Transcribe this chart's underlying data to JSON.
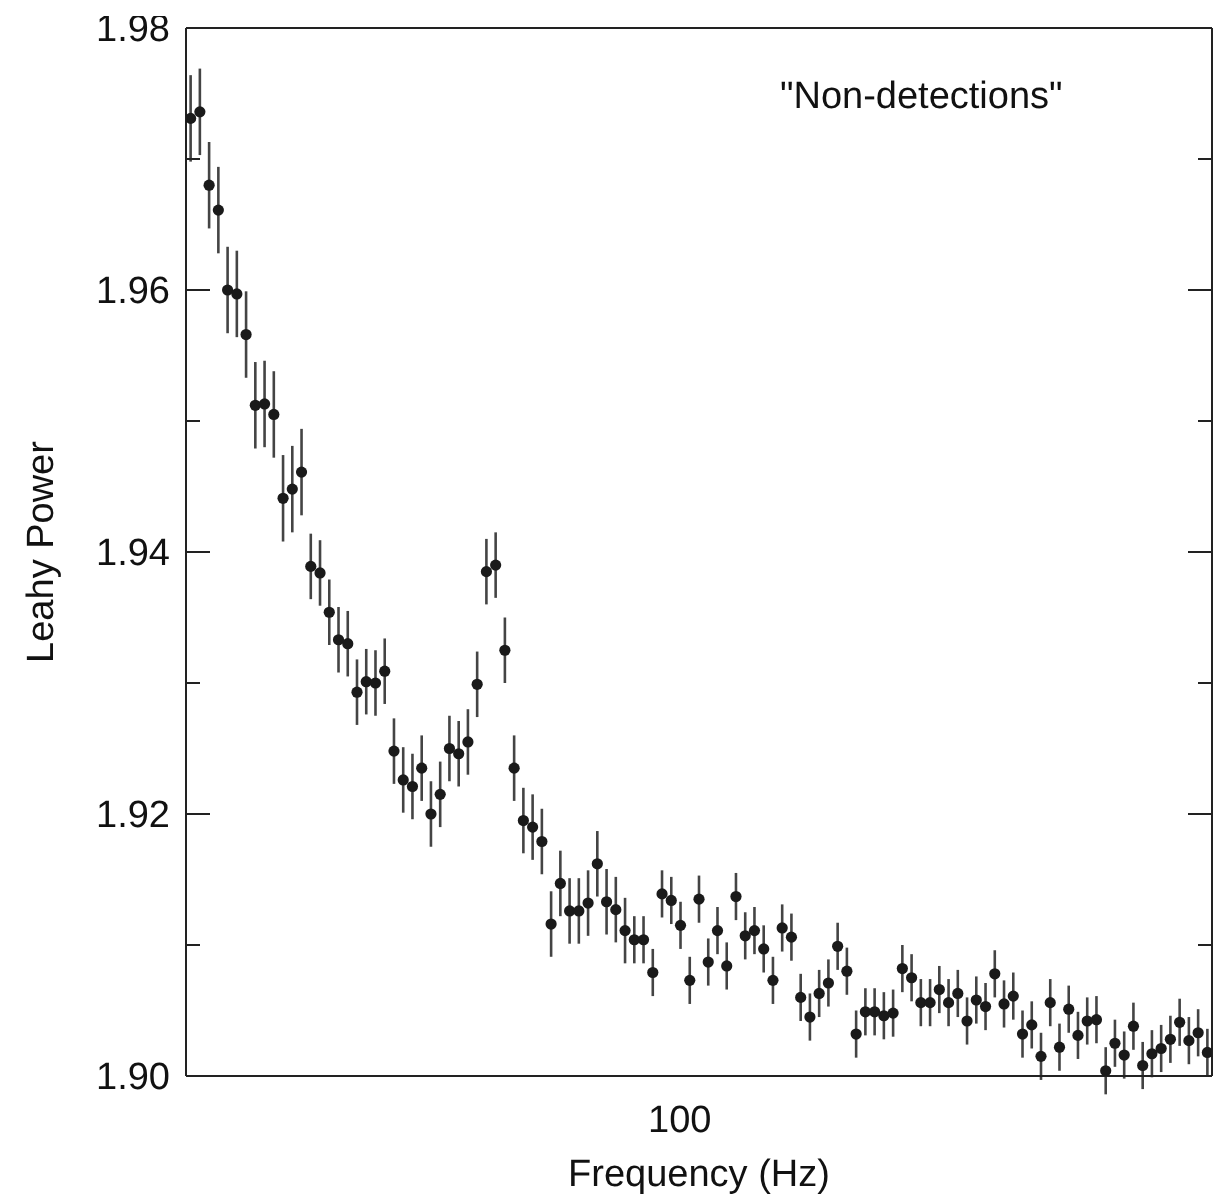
{
  "chart_data": {
    "type": "scatter",
    "xlabel": "Frequency (Hz)",
    "ylabel": "Leahy Power",
    "annotations": [
      "\"Non-detections\"",
      "100"
    ],
    "grid": false,
    "legend": false,
    "marker": "circle",
    "categories": [
      null,
      null,
      null,
      null,
      null,
      null,
      null,
      null,
      null,
      null,
      null,
      null,
      null,
      null,
      null,
      null,
      null,
      null,
      null,
      null,
      null,
      null,
      null,
      null,
      null,
      null,
      null,
      null,
      null,
      null,
      null,
      null,
      null,
      null,
      null,
      null,
      null,
      null,
      null,
      null,
      null,
      null,
      null,
      null,
      null,
      null,
      null,
      null,
      null,
      null,
      null,
      null,
      null,
      null,
      null,
      null,
      null,
      null,
      null,
      null,
      null,
      null,
      null,
      null,
      null,
      null,
      null,
      null,
      null,
      null,
      null,
      null,
      null,
      null,
      null,
      null,
      null,
      null,
      null,
      null,
      null,
      null,
      null,
      null,
      null,
      null,
      null,
      null,
      null,
      null,
      null,
      null,
      null,
      null,
      null,
      null,
      null,
      null,
      null,
      null,
      null,
      null,
      null,
      null,
      null,
      null,
      null,
      null,
      null,
      null,
      null
    ],
    "ylim": [
      1.9,
      1.98
    ],
    "yticks": [
      {
        "value": 1.9,
        "label": "1.90"
      },
      {
        "value": 1.91,
        "label": null
      },
      {
        "value": 1.92,
        "label": "1.92"
      },
      {
        "value": 1.93,
        "label": null
      },
      {
        "value": 1.94,
        "label": "1.94"
      },
      {
        "value": 1.95,
        "label": null
      },
      {
        "value": 1.96,
        "label": "1.96"
      },
      {
        "value": 1.97,
        "label": null
      },
      {
        "value": 1.98,
        "label": "1.98"
      }
    ],
    "series": [
      {
        "color": "#1a1a1a",
        "values": [
          1.9731,
          1.9736,
          1.968,
          1.9661,
          1.96,
          1.9597,
          1.9566,
          1.9512,
          1.9513,
          1.9505,
          1.9441,
          1.9448,
          1.9461,
          1.9389,
          1.9384,
          1.9354,
          1.9333,
          1.933,
          1.9293,
          1.9301,
          1.93,
          1.9309,
          1.9248,
          1.9226,
          1.9221,
          1.9235,
          1.92,
          1.9215,
          1.925,
          1.9246,
          1.9255,
          1.9299,
          1.9385,
          1.939,
          1.9325,
          1.9235,
          1.9195,
          1.919,
          1.9179,
          1.9116,
          1.9147,
          1.9126,
          1.9126,
          1.9132,
          1.9162,
          1.9133,
          1.9127,
          1.9111,
          1.9104,
          1.9104,
          1.9079,
          1.9139,
          1.9134,
          1.9115,
          1.9073,
          1.9135,
          1.9087,
          1.9111,
          1.9084,
          1.9137,
          1.9107,
          1.9111,
          1.9097,
          1.9073,
          1.9113,
          1.9106,
          1.906,
          1.9045,
          1.9063,
          1.9071,
          1.9099,
          1.908,
          1.9032,
          1.9049,
          1.9049,
          1.9046,
          1.9048,
          1.9082,
          1.9075,
          1.9056,
          1.9056,
          1.9066,
          1.9056,
          1.9063,
          1.9042,
          1.9058,
          1.9053,
          1.9078,
          1.9055,
          1.9061,
          1.9032,
          1.9039,
          1.9015,
          1.9056,
          1.9022,
          1.9051,
          1.9031,
          1.9042,
          1.9043,
          1.9004,
          1.9025,
          1.9016,
          1.9038,
          1.9008,
          1.9017,
          1.9021,
          1.9028,
          1.9041,
          1.9027,
          1.9033,
          1.9018
        ],
        "errors": [
          0.0033,
          0.0033,
          0.0033,
          0.0033,
          0.0033,
          0.0033,
          0.0033,
          0.0033,
          0.0033,
          0.0033,
          0.0033,
          0.0033,
          0.0033,
          0.0025,
          0.0025,
          0.0025,
          0.0025,
          0.0025,
          0.0025,
          0.0025,
          0.0025,
          0.0025,
          0.0025,
          0.0025,
          0.0025,
          0.0025,
          0.0025,
          0.0025,
          0.0025,
          0.0025,
          0.0025,
          0.0025,
          0.0025,
          0.0025,
          0.0025,
          0.0025,
          0.0025,
          0.0025,
          0.0025,
          0.0025,
          0.0025,
          0.0025,
          0.0025,
          0.0025,
          0.0025,
          0.0025,
          0.0025,
          0.0025,
          0.0018,
          0.0018,
          0.0018,
          0.0018,
          0.0018,
          0.0018,
          0.0018,
          0.0018,
          0.0018,
          0.0018,
          0.0018,
          0.0018,
          0.0018,
          0.0018,
          0.0018,
          0.0018,
          0.0018,
          0.0018,
          0.0018,
          0.0018,
          0.0018,
          0.0018,
          0.0018,
          0.0018,
          0.0018,
          0.0018,
          0.0018,
          0.0018,
          0.0018,
          0.0018,
          0.0018,
          0.0018,
          0.0018,
          0.0018,
          0.0018,
          0.0018,
          0.0018,
          0.0018,
          0.0018,
          0.0018,
          0.0018,
          0.0018,
          0.0018,
          0.0018,
          0.0018,
          0.0018,
          0.0018,
          0.0018,
          0.0018,
          0.0018,
          0.0018,
          0.0018,
          0.0018,
          0.0018,
          0.0018,
          0.0018,
          0.0018,
          0.0018,
          0.0018,
          0.0018,
          0.0018,
          0.0018,
          0.0018
        ]
      }
    ]
  }
}
